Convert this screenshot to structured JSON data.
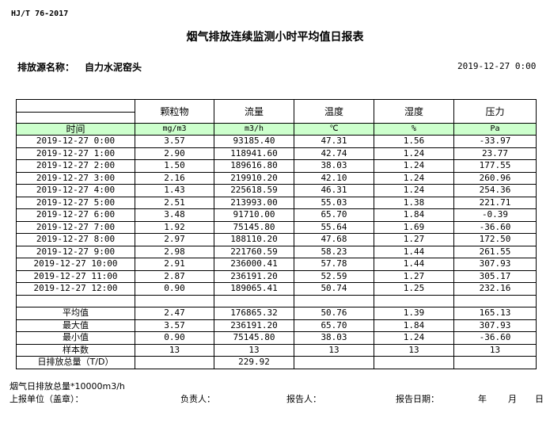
{
  "header": {
    "standard": "HJ/T  76-2017",
    "title": "烟气排放连续监测小时平均值日报表",
    "source_label": "排放源名称：",
    "source_value": "自力水泥窑头",
    "report_datetime": "2019-12-27  0:00"
  },
  "table": {
    "time_label": "时间",
    "columns": [
      {
        "name": "颗粒物",
        "unit": "mg/m3"
      },
      {
        "name": "流量",
        "unit": "m3/h"
      },
      {
        "name": "温度",
        "unit": "℃"
      },
      {
        "name": "湿度",
        "unit": "%"
      },
      {
        "name": "压力",
        "unit": "Pa"
      }
    ],
    "rows": [
      [
        "2019-12-27  0:00",
        "3.57",
        "93185.40",
        "47.31",
        "1.56",
        "-33.97"
      ],
      [
        "2019-12-27  1:00",
        "2.90",
        "118941.60",
        "42.74",
        "1.24",
        "23.77"
      ],
      [
        "2019-12-27  2:00",
        "1.50",
        "189616.80",
        "38.03",
        "1.24",
        "177.55"
      ],
      [
        "2019-12-27  3:00",
        "2.16",
        "219910.20",
        "42.10",
        "1.24",
        "260.96"
      ],
      [
        "2019-12-27  4:00",
        "1.43",
        "225618.59",
        "46.31",
        "1.24",
        "254.36"
      ],
      [
        "2019-12-27  5:00",
        "2.51",
        "213993.00",
        "55.03",
        "1.38",
        "221.71"
      ],
      [
        "2019-12-27  6:00",
        "3.48",
        "91710.00",
        "65.70",
        "1.84",
        "-0.39"
      ],
      [
        "2019-12-27  7:00",
        "1.92",
        "75145.80",
        "55.64",
        "1.69",
        "-36.60"
      ],
      [
        "2019-12-27  8:00",
        "2.97",
        "188110.20",
        "47.68",
        "1.27",
        "172.50"
      ],
      [
        "2019-12-27  9:00",
        "2.98",
        "221760.59",
        "58.23",
        "1.44",
        "261.55"
      ],
      [
        "2019-12-27  10:00",
        "2.91",
        "236000.41",
        "57.78",
        "1.44",
        "307.93"
      ],
      [
        "2019-12-27  11:00",
        "2.87",
        "236191.20",
        "52.59",
        "1.27",
        "305.17"
      ],
      [
        "2019-12-27  12:00",
        "0.90",
        "189065.41",
        "50.74",
        "1.25",
        "232.16"
      ]
    ],
    "summary": [
      [
        "平均值",
        "2.47",
        "176865.32",
        "50.76",
        "1.39",
        "165.13"
      ],
      [
        "最大值",
        "3.57",
        "236191.20",
        "65.70",
        "1.84",
        "307.93"
      ],
      [
        "最小值",
        "0.90",
        "75145.80",
        "38.03",
        "1.24",
        "-36.60"
      ],
      [
        "样本数",
        "13",
        "13",
        "13",
        "13",
        "13"
      ],
      [
        "日排放总量（T/D）",
        "",
        "229.92",
        "",
        "",
        ""
      ]
    ]
  },
  "footer": {
    "note": "烟气日排放总量*10000m3/h",
    "unit_label": "上报单位（盖章）：",
    "responsible_label": "负责人：",
    "reporter_label": "报告人：",
    "date_label": "报告日期：",
    "year": "年",
    "month": "月",
    "day": "日"
  }
}
